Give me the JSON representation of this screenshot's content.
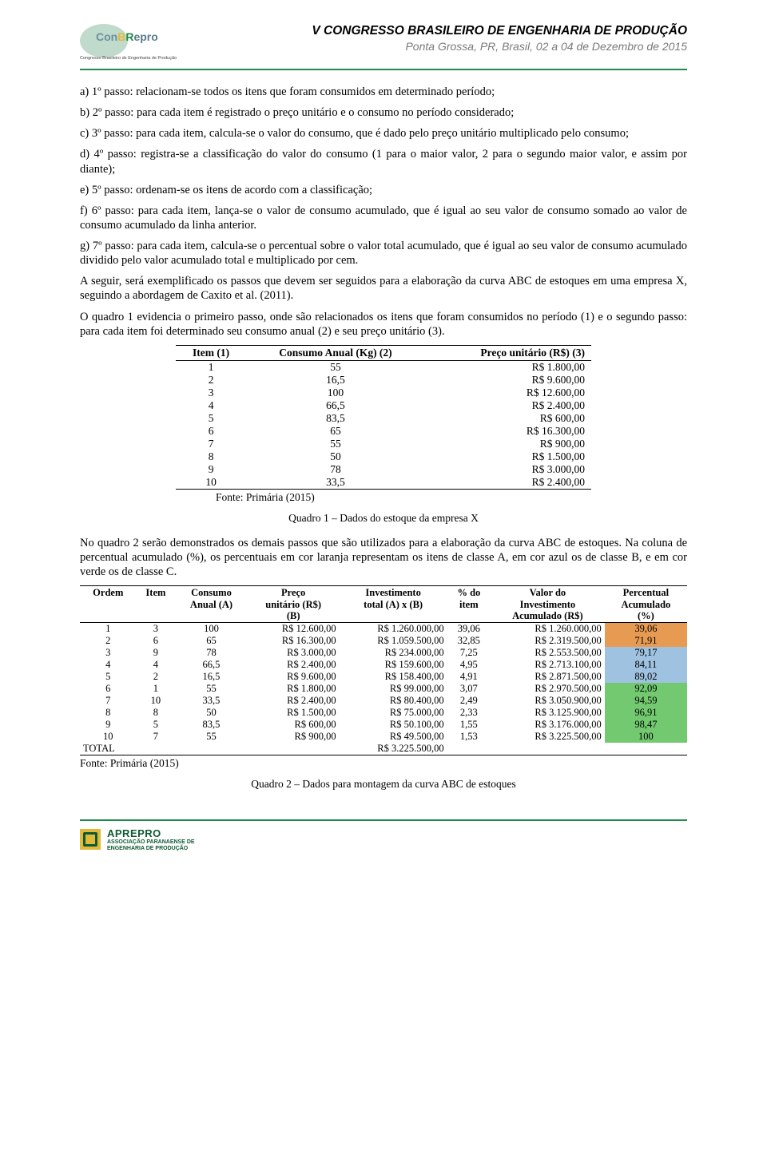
{
  "header": {
    "title": "V CONGRESSO BRASILEIRO DE ENGENHARIA DE PRODUÇÃO",
    "subtitle": "Ponta Grossa, PR, Brasil, 02 a 04 de Dezembro de 2015",
    "logo_text_parts": {
      "p1": "Con",
      "p2": "B",
      "p3": "R",
      "p4": "epro"
    },
    "logo_sub": "Congresso Brasileiro de Engenharia de Produção"
  },
  "body": {
    "p_a": "a) 1º passo: relacionam-se todos os itens que foram consumidos em determinado período;",
    "p_b": "b) 2º passo: para cada item é registrado o preço unitário e o consumo no período considerado;",
    "p_c": "c) 3º passo: para cada item, calcula-se o valor do consumo, que é dado pelo preço unitário multiplicado pelo consumo;",
    "p_d": "d) 4º passo: registra-se a classificação do valor do consumo (1 para o maior valor, 2 para o segundo maior valor, e assim por diante);",
    "p_e": "e) 5º passo: ordenam-se os itens de acordo com a classificação;",
    "p_f": "f) 6º passo: para cada item, lança-se o valor de consumo acumulado, que é igual ao seu valor de consumo somado ao valor de consumo acumulado da linha anterior.",
    "p_g": "g) 7º passo: para cada item, calcula-se o percentual sobre o valor total acumulado, que é igual ao seu valor de consumo acumulado dividido pelo valor acumulado total e multiplicado por cem.",
    "p_h": "A seguir, será exemplificado os passos que devem ser seguidos para a elaboração da curva ABC de estoques em uma empresa X, seguindo a abordagem de Caxito et al. (2011).",
    "p_i": "O quadro 1 evidencia o primeiro passo, onde são relacionados os itens que foram consumidos no período (1) e o segundo passo: para cada item foi determinado seu consumo anual (2) e seu preço unitário (3).",
    "p_mid": "No quadro 2 serão demonstrados os demais passos que são utilizados para a elaboração da curva ABC de estoques. Na coluna de percentual acumulado (%), os percentuais em cor laranja representam os itens de classe A, em cor azul os de classe B, e em cor verde os de classe C."
  },
  "table1": {
    "headers": {
      "h1": "Item (1)",
      "h2": "Consumo Anual (Kg) (2)",
      "h3": "Preço unitário (R$) (3)"
    },
    "rows": [
      {
        "item": "1",
        "consumo": "55",
        "preco": "R$ 1.800,00"
      },
      {
        "item": "2",
        "consumo": "16,5",
        "preco": "R$ 9.600,00"
      },
      {
        "item": "3",
        "consumo": "100",
        "preco": "R$ 12.600,00"
      },
      {
        "item": "4",
        "consumo": "66,5",
        "preco": "R$ 2.400,00"
      },
      {
        "item": "5",
        "consumo": "83,5",
        "preco": "R$ 600,00"
      },
      {
        "item": "6",
        "consumo": "65",
        "preco": "R$ 16.300,00"
      },
      {
        "item": "7",
        "consumo": "55",
        "preco": "R$ 900,00"
      },
      {
        "item": "8",
        "consumo": "50",
        "preco": "R$ 1.500,00"
      },
      {
        "item": "9",
        "consumo": "78",
        "preco": "R$ 3.000,00"
      },
      {
        "item": "10",
        "consumo": "33,5",
        "preco": "R$ 2.400,00"
      }
    ],
    "fonte": "Fonte: Primária (2015)",
    "caption": "Quadro 1 – Dados do estoque da empresa X"
  },
  "table2": {
    "headers": {
      "h1": "Ordem",
      "h2": "Item",
      "h3a": "Consumo",
      "h3b": "Anual (A)",
      "h4a": "Preço",
      "h4b": "unitário (R$)",
      "h4c": "(B)",
      "h5a": "Investimento",
      "h5b": "total (A) x (B)",
      "h6a": "% do",
      "h6b": "item",
      "h7a": "Valor do",
      "h7b": "Investimento",
      "h7c": "Acumulado (R$)",
      "h8a": "Percentual",
      "h8b": "Acumulado",
      "h8c": "(%)"
    },
    "rows": [
      {
        "ordem": "1",
        "item": "3",
        "cons": "100",
        "preco": "R$ 12.600,00",
        "inv": "R$ 1.260.000,00",
        "pct": "39,06",
        "acum": "R$ 1.260.000,00",
        "pacc": "39,06",
        "cls": "orange"
      },
      {
        "ordem": "2",
        "item": "6",
        "cons": "65",
        "preco": "R$ 16.300,00",
        "inv": "R$ 1.059.500,00",
        "pct": "32,85",
        "acum": "R$ 2.319.500,00",
        "pacc": "71,91",
        "cls": "orange"
      },
      {
        "ordem": "3",
        "item": "9",
        "cons": "78",
        "preco": "R$ 3.000,00",
        "inv": "R$ 234.000,00",
        "pct": "7,25",
        "acum": "R$ 2.553.500,00",
        "pacc": "79,17",
        "cls": "blue"
      },
      {
        "ordem": "4",
        "item": "4",
        "cons": "66,5",
        "preco": "R$ 2.400,00",
        "inv": "R$ 159.600,00",
        "pct": "4,95",
        "acum": "R$ 2.713.100,00",
        "pacc": "84,11",
        "cls": "blue"
      },
      {
        "ordem": "5",
        "item": "2",
        "cons": "16,5",
        "preco": "R$ 9.600,00",
        "inv": "R$ 158.400,00",
        "pct": "4,91",
        "acum": "R$ 2.871.500,00",
        "pacc": "89,02",
        "cls": "blue"
      },
      {
        "ordem": "6",
        "item": "1",
        "cons": "55",
        "preco": "R$ 1.800,00",
        "inv": "R$ 99.000,00",
        "pct": "3,07",
        "acum": "R$ 2.970.500,00",
        "pacc": "92,09",
        "cls": "green"
      },
      {
        "ordem": "7",
        "item": "10",
        "cons": "33,5",
        "preco": "R$ 2.400,00",
        "inv": "R$ 80.400,00",
        "pct": "2,49",
        "acum": "R$ 3.050.900,00",
        "pacc": "94,59",
        "cls": "green"
      },
      {
        "ordem": "8",
        "item": "8",
        "cons": "50",
        "preco": "R$ 1.500,00",
        "inv": "R$ 75.000,00",
        "pct": "2,33",
        "acum": "R$ 3.125.900,00",
        "pacc": "96,91",
        "cls": "green"
      },
      {
        "ordem": "9",
        "item": "5",
        "cons": "83,5",
        "preco": "R$ 600,00",
        "inv": "R$ 50.100,00",
        "pct": "1,55",
        "acum": "R$ 3.176.000,00",
        "pacc": "98,47",
        "cls": "green"
      },
      {
        "ordem": "10",
        "item": "7",
        "cons": "55",
        "preco": "R$ 900,00",
        "inv": "R$ 49.500,00",
        "pct": "1,53",
        "acum": "R$ 3.225.500,00",
        "pacc": "100",
        "cls": "green"
      }
    ],
    "total_label": "TOTAL",
    "total_value": "R$ 3.225.500,00",
    "fonte": "Fonte: Primária (2015)",
    "caption": "Quadro 2 – Dados para montagem da curva ABC de estoques"
  },
  "footer": {
    "logo_main": "APREPRO",
    "logo_sub1": "ASSOCIAÇÃO PARANAENSE DE",
    "logo_sub2": "ENGENHARIA DE PRODUÇÃO"
  },
  "colors": {
    "rule": "#1f8a4c",
    "class_a": "#e79b52",
    "class_b": "#9ec2e0",
    "class_c": "#72c96f"
  }
}
